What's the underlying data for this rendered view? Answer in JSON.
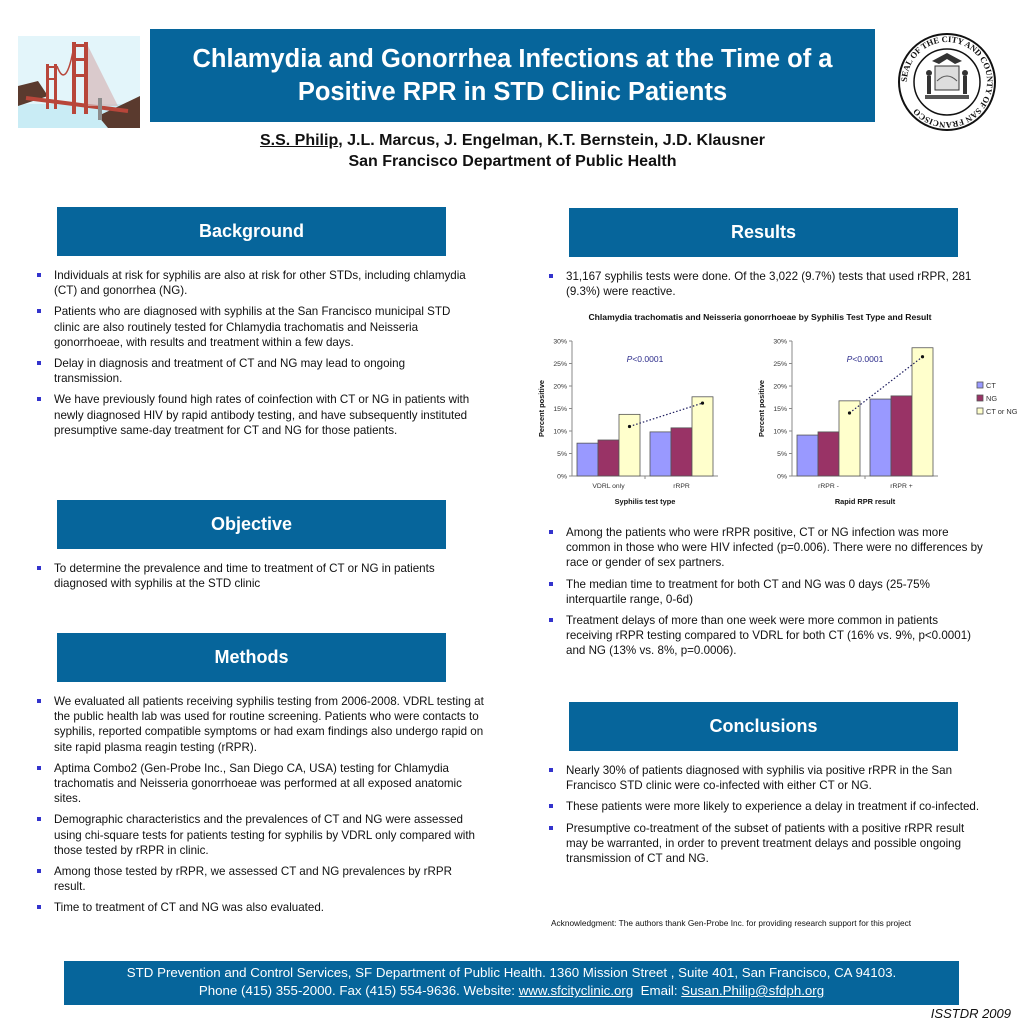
{
  "header": {
    "title": "Chlamydia and Gonorrhea Infections at the Time of a Positive RPR in STD Clinic Patients",
    "presenter": "S.S. Philip",
    "coauthors": ", J.L. Marcus, J. Engelman, K.T. Bernstein, J.D. Klausner",
    "affiliation": "San Francisco Department of Public Health",
    "left_logo": "golden-gate-bridge-illustration",
    "right_logo": "seal-of-the-city-and-county-of-san-francisco",
    "seal_text": "SEAL OF THE CITY AND COUNTY OF SAN FRANCISCO"
  },
  "sections": {
    "background": {
      "heading": "Background",
      "bullets": [
        "Individuals at risk for syphilis are also at risk for other STDs, including chlamydia (CT) and gonorrhea (NG).",
        "Patients who are diagnosed with syphilis at the San Francisco municipal STD clinic are also routinely tested for Chlamydia trachomatis and Neisseria gonorrhoeae, with results and treatment within a few days.",
        "Delay in diagnosis and treatment of CT and NG may lead to ongoing transmission.",
        "We have previously found high rates of coinfection with CT or NG in patients with newly diagnosed HIV by rapid antibody testing, and have subsequently instituted presumptive same-day treatment for CT and NG for those patients."
      ]
    },
    "objective": {
      "heading": "Objective",
      "bullets": [
        "To determine the prevalence and time to treatment of CT or NG in patients diagnosed with syphilis at the STD clinic"
      ]
    },
    "methods": {
      "heading": "Methods",
      "bullets": [
        "We evaluated all patients receiving syphilis testing from 2006-2008. VDRL testing at the public health lab was used for routine screening. Patients who were contacts to syphilis, reported compatible symptoms or had exam findings also undergo rapid on site rapid plasma reagin testing (rRPR).",
        "Aptima Combo2 (Gen-Probe Inc., San Diego CA, USA) testing for Chlamydia trachomatis and Neisseria gonorrhoeae was performed at all exposed anatomic sites.",
        "Demographic characteristics and the prevalences of CT and NG were assessed using chi-square tests for patients testing for syphilis by VDRL only compared with those tested by rRPR in clinic.",
        "Among those tested by rRPR, we assessed CT and NG prevalences by rRPR result.",
        "Time to treatment of CT and NG was also evaluated."
      ]
    },
    "results": {
      "heading": "Results",
      "bullets_top": [
        "31,167 syphilis tests were done. Of the 3,022 (9.7%) tests that used rRPR, 281 (9.3%) were reactive."
      ],
      "bullets_bottom": [
        "Among the patients who were rRPR positive, CT or NG infection was more common in those who were HIV infected (p=0.006).  There were no differences by race or gender of sex partners.",
        "The median time to treatment for both CT and NG was 0 days (25-75% interquartile range, 0-6d)",
        "Treatment delays of more than one week were more common in patients receiving rRPR testing compared to VDRL for both CT (16% vs. 9%, p<0.0001) and NG (13% vs. 8%, p=0.0006)."
      ]
    },
    "conclusions": {
      "heading": "Conclusions",
      "bullets": [
        "Nearly 30% of patients diagnosed with syphilis via positive rRPR in the San Francisco STD clinic were co-infected with either CT or NG.",
        "These patients were more likely to experience a delay in treatment if co-infected.",
        "Presumptive co-treatment of the subset of patients with a positive rRPR result may be warranted, in order to prevent treatment delays and possible ongoing transmission of CT and NG."
      ]
    }
  },
  "acknowledgment": "Acknowledgment:  The authors thank Gen-Probe Inc. for providing research support for this project",
  "footer": {
    "line1": "STD Prevention and Control Services, SF Department of Public Health. 1360 Mission Street , Suite 401, San Francisco, CA  94103.",
    "line2_prefix": "Phone (415) 355-2000.  Fax (415) 554-9636.  Website: ",
    "website": "www.sfcityclinic.org",
    "email_prefix": "  Email: ",
    "email": "Susan.Philip@sfdph.org",
    "conference": "ISSTDR 2009"
  },
  "colors": {
    "banner": "#06659b",
    "ct": "#9999ff",
    "ng": "#993366",
    "ct_or_ng": "#ffffcc",
    "bullet": "#3333cc",
    "pvalue": "#2a2a8a"
  },
  "chart_data": [
    {
      "type": "bar",
      "title": "Chlamydia trachomatis and Neisseria gonorrhoeae by Syphilis Test Type and Result",
      "xlabel": "Syphilis test type",
      "ylabel": "Percent positive",
      "ylim": [
        0,
        30
      ],
      "yticks": [
        "0%",
        "5%",
        "10%",
        "15%",
        "20%",
        "25%",
        "30%"
      ],
      "categories": [
        "VDRL only",
        "rRPR"
      ],
      "series": [
        {
          "name": "CT",
          "values": [
            7.3,
            9.8
          ]
        },
        {
          "name": "NG",
          "values": [
            8.0,
            10.7
          ]
        },
        {
          "name": "CT or NG",
          "values": [
            13.7,
            17.6
          ]
        }
      ],
      "trend_line": {
        "style": "dotted",
        "values": [
          11.0,
          16.2
        ]
      },
      "annotation": "P<0.0001",
      "grid": false
    },
    {
      "type": "bar",
      "title": "Chlamydia trachomatis and Neisseria gonorrhoeae by Syphilis Test Type and Result",
      "xlabel": "Rapid RPR result",
      "ylabel": "Percent positive",
      "ylim": [
        0,
        30
      ],
      "yticks": [
        "0%",
        "5%",
        "10%",
        "15%",
        "20%",
        "25%",
        "30%"
      ],
      "categories": [
        "rRPR -",
        "rRPR +"
      ],
      "series": [
        {
          "name": "CT",
          "values": [
            9.1,
            17.1
          ]
        },
        {
          "name": "NG",
          "values": [
            9.8,
            17.8
          ]
        },
        {
          "name": "CT or NG",
          "values": [
            16.7,
            28.5
          ]
        }
      ],
      "trend_line": {
        "style": "dotted",
        "values": [
          14.0,
          26.5
        ]
      },
      "annotation": "P<0.0001",
      "legend": [
        "CT",
        "NG",
        "CT or NG"
      ],
      "legend_position": "right",
      "grid": false
    }
  ]
}
